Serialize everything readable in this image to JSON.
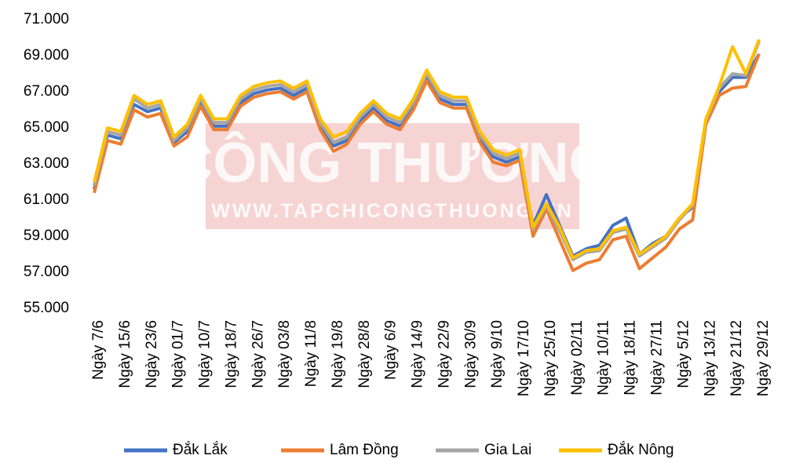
{
  "chart_data": {
    "type": "line",
    "watermark": {
      "title": "CÔNG THƯƠNG",
      "url": "WWW.TAPCHICONGTHUONG.VN"
    },
    "categories": [
      "Ngày 7/6",
      null,
      "Ngày 15/6",
      null,
      "Ngày 23/6",
      null,
      "Ngày 01/7",
      null,
      "Ngày 10/7",
      null,
      "Ngày 18/7",
      null,
      "Ngày 26/7",
      null,
      "Ngày 03/8",
      null,
      "Ngày 11/8",
      null,
      "Ngày 19/8",
      null,
      "Ngày 28/8",
      null,
      "Ngày 6/9",
      null,
      "Ngày 14/9",
      null,
      "Ngày 22/9",
      null,
      "Ngày 30/9",
      null,
      "Ngày 9/10",
      null,
      "Ngày 17/10",
      null,
      "Ngày 25/10",
      null,
      "Ngày 02/11",
      null,
      "Ngày 10/11",
      null,
      "Ngày 18/11",
      null,
      "Ngày 27/11",
      null,
      "Ngày 5/12",
      null,
      "Ngày 13/12",
      null,
      "Ngày 21/12",
      null,
      "Ngày 29/12"
    ],
    "series": [
      {
        "name": "Đắk Lắk",
        "color": "#4472c4",
        "values": [
          61.6,
          64.6,
          64.4,
          66.3,
          65.9,
          66.1,
          64.2,
          64.8,
          66.4,
          65.1,
          65.1,
          66.4,
          66.9,
          67.1,
          67.2,
          66.8,
          67.2,
          65.1,
          64.0,
          64.3,
          65.4,
          66.1,
          65.4,
          65.1,
          66.2,
          67.8,
          66.6,
          66.3,
          66.3,
          64.4,
          63.4,
          63.1,
          63.4,
          59.6,
          61.3,
          59.6,
          57.9,
          58.3,
          58.5,
          59.6,
          60.0,
          58.0,
          58.6,
          59.0,
          60.0,
          60.6,
          65.3,
          67.0,
          67.8,
          67.8,
          69.1
        ]
      },
      {
        "name": "Lâm Đồng",
        "color": "#ed7d31",
        "values": [
          61.4,
          64.3,
          64.1,
          66.0,
          65.6,
          65.8,
          64.0,
          64.5,
          66.2,
          64.9,
          64.9,
          66.2,
          66.7,
          66.9,
          67.0,
          66.6,
          67.0,
          64.9,
          63.7,
          64.1,
          65.2,
          65.9,
          65.2,
          64.9,
          66.0,
          67.6,
          66.4,
          66.1,
          66.1,
          64.2,
          63.1,
          62.9,
          63.2,
          59.0,
          60.5,
          58.8,
          57.1,
          57.5,
          57.7,
          58.8,
          59.0,
          57.2,
          57.8,
          58.4,
          59.4,
          59.9,
          65.2,
          66.8,
          67.2,
          67.3,
          69.1
        ]
      },
      {
        "name": "Gia Lai",
        "color": "#a5a5a5",
        "values": [
          61.8,
          64.8,
          64.6,
          66.6,
          66.1,
          66.3,
          64.3,
          65.0,
          66.6,
          65.3,
          65.3,
          66.6,
          67.1,
          67.3,
          67.4,
          67.0,
          67.4,
          65.3,
          64.2,
          64.5,
          65.6,
          66.3,
          65.6,
          65.3,
          66.4,
          68.0,
          66.8,
          66.5,
          66.5,
          64.6,
          63.6,
          63.3,
          63.6,
          59.4,
          60.7,
          59.3,
          57.7,
          58.1,
          58.2,
          59.2,
          59.4,
          57.9,
          58.4,
          58.9,
          59.9,
          60.7,
          65.4,
          67.2,
          68.0,
          67.9,
          69.8
        ]
      },
      {
        "name": "Đắk Nông",
        "color": "#ffc000",
        "values": [
          62.0,
          65.0,
          64.8,
          66.8,
          66.3,
          66.5,
          64.5,
          65.2,
          66.8,
          65.5,
          65.5,
          66.8,
          67.3,
          67.5,
          67.6,
          67.2,
          67.6,
          65.5,
          64.5,
          64.8,
          65.8,
          66.5,
          65.8,
          65.5,
          66.6,
          68.2,
          67.0,
          66.7,
          66.7,
          64.8,
          63.8,
          63.5,
          63.8,
          59.5,
          60.8,
          59.5,
          57.8,
          58.2,
          58.3,
          59.3,
          59.5,
          58.0,
          58.5,
          59.0,
          60.0,
          60.8,
          65.5,
          67.3,
          69.5,
          68.0,
          69.9
        ]
      }
    ],
    "ylim": [
      55,
      71
    ],
    "yticks": [
      {
        "value": 55,
        "label": "55.000"
      },
      {
        "value": 57,
        "label": "57.000"
      },
      {
        "value": 59,
        "label": "59.000"
      },
      {
        "value": 61,
        "label": "61.000"
      },
      {
        "value": 63,
        "label": "63.000"
      },
      {
        "value": 65,
        "label": "65.000"
      },
      {
        "value": 67,
        "label": "67.000"
      },
      {
        "value": 69,
        "label": "69.000"
      },
      {
        "value": 71,
        "label": "71.000"
      }
    ],
    "legend": "bottom"
  }
}
